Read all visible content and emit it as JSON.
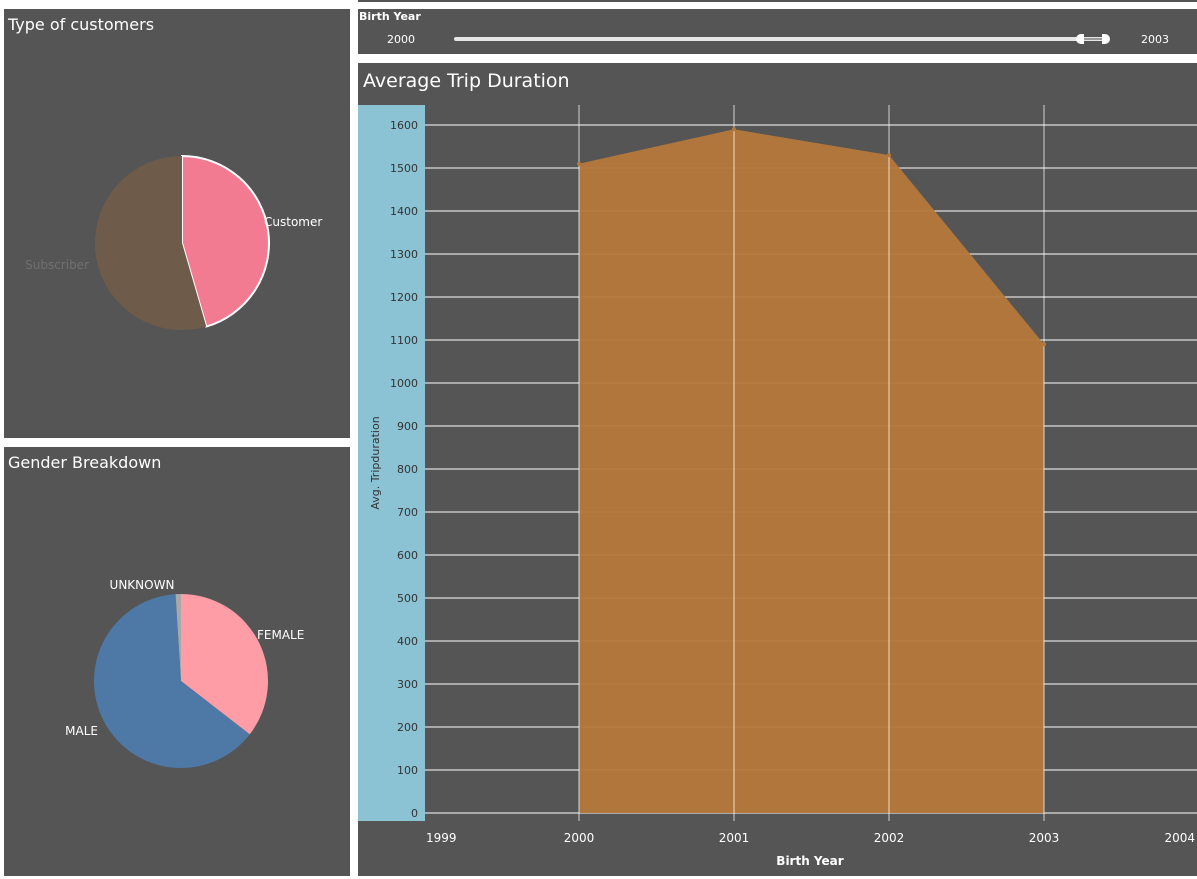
{
  "customers": {
    "title": "Type of customers",
    "chart_data": {
      "type": "pie",
      "categories": [
        "Customer",
        "Subscriber"
      ],
      "values": [
        45.5,
        54.5
      ],
      "colors": [
        "#f27b91",
        "#6e5b4a"
      ],
      "label_colors": [
        "#ffffff",
        "#707070"
      ],
      "highlighted": "Customer"
    }
  },
  "gender": {
    "title": "Gender Breakdown",
    "chart_data": {
      "type": "pie",
      "categories": [
        "FEMALE",
        "MALE",
        "UNKNOWN"
      ],
      "values": [
        35.5,
        63.5,
        1.0
      ],
      "colors": [
        "#ff9da7",
        "#4e79a7",
        "#a8a8a8"
      ],
      "label_colors": [
        "#ffffff",
        "#ffffff",
        "#ffffff"
      ]
    }
  },
  "filter": {
    "title": "Birth Year",
    "min_label": "2000",
    "max_label": "2003",
    "selected_range": [
      2000,
      2003
    ]
  },
  "trip": {
    "title": "Average Trip Duration",
    "chart_data": {
      "type": "area",
      "x": [
        2000,
        2001,
        2002,
        2003
      ],
      "values": [
        1510,
        1590,
        1530,
        1090
      ],
      "xlabel": "Birth Year",
      "ylabel": "Avg. Tripduration",
      "x_ticks": [
        "1999",
        "2000",
        "2001",
        "2002",
        "2003",
        "2004"
      ],
      "y_ticks": [
        "0",
        "100",
        "200",
        "300",
        "400",
        "500",
        "600",
        "700",
        "800",
        "900",
        "1000",
        "1100",
        "1200",
        "1300",
        "1400",
        "1500",
        "1600"
      ],
      "xlim": [
        1999,
        2004
      ],
      "ylim": [
        0,
        1600
      ],
      "grid": true,
      "area_color": "#b5783a",
      "axis_band_color": "#8bc3d4"
    }
  }
}
